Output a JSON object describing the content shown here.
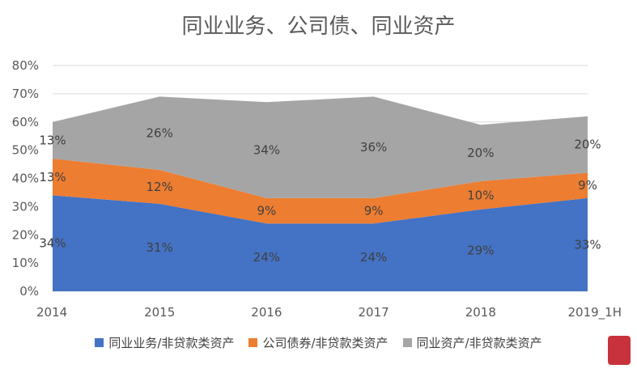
{
  "title": "同业业务、公司债、同业资产",
  "colors": {
    "blue": "#4472C4",
    "orange": "#ED7D31",
    "gray": "#A5A5A5",
    "grid": "#D9D9D9"
  },
  "chart_data": {
    "type": "area",
    "stacked": true,
    "categories": [
      "2014",
      "2015",
      "2016",
      "2017",
      "2018",
      "2019_1H"
    ],
    "series": [
      {
        "name": "同业业务/非贷款类资产",
        "values": [
          34,
          31,
          24,
          24,
          29,
          33
        ],
        "labels": [
          "34%",
          "31%",
          "24%",
          "24%",
          "29%",
          "33%"
        ],
        "color": "#4472C4"
      },
      {
        "name": "公司债券/非贷款类资产",
        "values": [
          13,
          12,
          9,
          9,
          10,
          9
        ],
        "labels": [
          "13%",
          "12%",
          "9%",
          "9%",
          "10%",
          "9%"
        ],
        "color": "#ED7D31"
      },
      {
        "name": "同业资产/非贷款类资产",
        "values": [
          13,
          26,
          34,
          36,
          20,
          20
        ],
        "labels": [
          "13%",
          "26%",
          "34%",
          "36%",
          "20%",
          "20%"
        ],
        "color": "#A5A5A5"
      }
    ],
    "ylim": [
      0,
      80
    ],
    "yticks": [
      "0%",
      "10%",
      "20%",
      "30%",
      "40%",
      "50%",
      "60%",
      "70%",
      "80%"
    ],
    "grid": true,
    "legend_position": "bottom"
  }
}
